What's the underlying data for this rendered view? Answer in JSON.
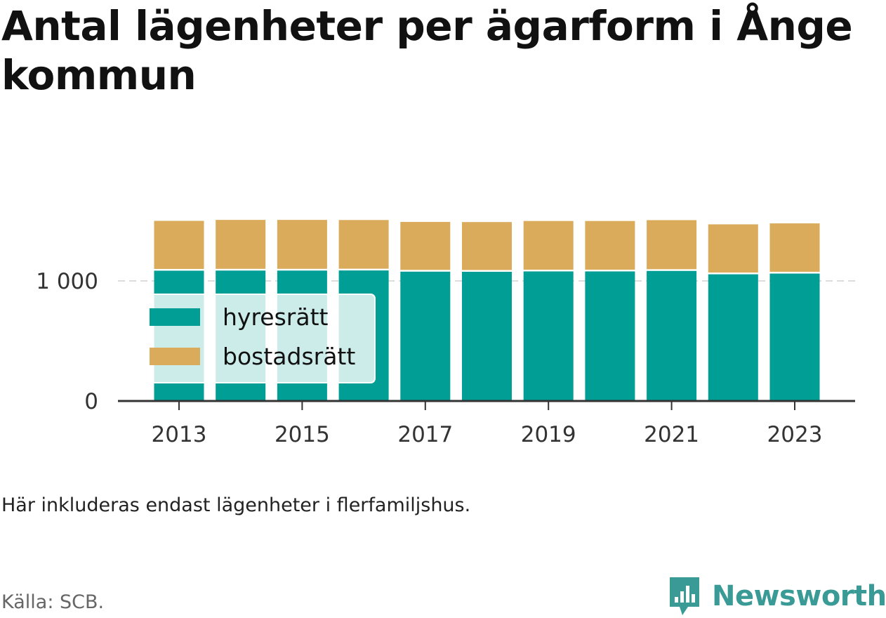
{
  "chart_data": {
    "type": "bar",
    "stacked": true,
    "title": "Antal lägenheter per ägarform i Ånge kommun",
    "categories": [
      "2013",
      "2014",
      "2015",
      "2016",
      "2017",
      "2018",
      "2019",
      "2020",
      "2021",
      "2022",
      "2023"
    ],
    "x_tick_labels": [
      "2013",
      "2015",
      "2017",
      "2019",
      "2021",
      "2023"
    ],
    "series": [
      {
        "name": "hyresrätt",
        "color": "#009e94",
        "values": [
          1085,
          1086,
          1086,
          1087,
          1077,
          1076,
          1079,
          1079,
          1083,
          1055,
          1061
        ]
      },
      {
        "name": "bostadsrätt",
        "color": "#d9ab5b",
        "values": [
          415,
          422,
          422,
          420,
          414,
          414,
          420,
          420,
          423,
          416,
          418
        ]
      }
    ],
    "ylim": [
      0,
      1600
    ],
    "y_ticks": [
      0,
      1000
    ],
    "y_tick_labels": [
      "0",
      "1 000"
    ],
    "grid": "horizontal dashed",
    "legend_placement": "inside bottom-left"
  },
  "note": "Här inkluderas endast lägenheter i flerfamiljshus.",
  "source": "Källa: SCB.",
  "brand": {
    "name": "Newsworthy",
    "color": "#3a9a96"
  }
}
